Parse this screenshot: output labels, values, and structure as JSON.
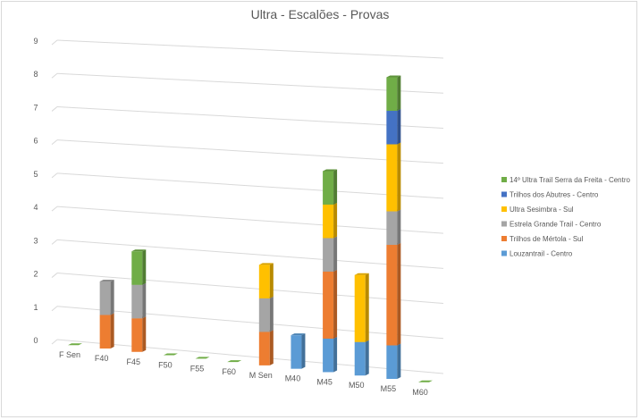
{
  "chart_data": {
    "type": "bar",
    "stacked": true,
    "three_d": true,
    "title": "Ultra - Escalões - Provas",
    "xlabel": "",
    "ylabel": "",
    "ylim": [
      0,
      9
    ],
    "yticks": [
      0,
      1,
      2,
      3,
      4,
      5,
      6,
      7,
      8,
      9
    ],
    "grid": true,
    "legend_position": "right",
    "categories": [
      "F Sen",
      "F40",
      "F45",
      "F50",
      "F55",
      "F60",
      "M Sen",
      "M40",
      "M45",
      "M50",
      "M55",
      "M60"
    ],
    "series": [
      {
        "name": "Louzantrail - Centro",
        "color": "#5b9bd5",
        "values": [
          0,
          0,
          0,
          0,
          0,
          0,
          0,
          1,
          1,
          1,
          1,
          0
        ]
      },
      {
        "name": "Trilhos de Mértola - Sul",
        "color": "#ed7d31",
        "values": [
          0,
          1,
          1,
          0,
          0,
          0,
          1,
          0,
          2,
          0,
          3,
          0
        ]
      },
      {
        "name": "Estrela Grande Trail - Centro",
        "color": "#a5a5a5",
        "values": [
          0,
          1,
          1,
          0,
          0,
          0,
          1,
          0,
          1,
          0,
          1,
          0
        ]
      },
      {
        "name": "Ultra Sesimbra - Sul",
        "color": "#ffc000",
        "values": [
          0,
          0,
          0,
          0,
          0,
          0,
          1,
          0,
          1,
          2,
          2,
          0
        ]
      },
      {
        "name": "Trilhos dos Abutres - Centro",
        "color": "#4472c4",
        "values": [
          0,
          0,
          0,
          0,
          0,
          0,
          0,
          0,
          0,
          0,
          1,
          0
        ]
      },
      {
        "name": "14º Ultra Trail Serra da Freita - Centro",
        "color": "#70ad47",
        "values": [
          0,
          0,
          1,
          0,
          0,
          0,
          0,
          0,
          1,
          0,
          1,
          0
        ]
      }
    ],
    "legend_order": [
      "14º Ultra Trail Serra da Freita - Centro",
      "Trilhos dos Abutres - Centro",
      "Ultra Sesimbra - Sul",
      "Estrela Grande Trail - Centro",
      "Trilhos de Mértola - Sul",
      "Louzantrail - Centro"
    ]
  }
}
